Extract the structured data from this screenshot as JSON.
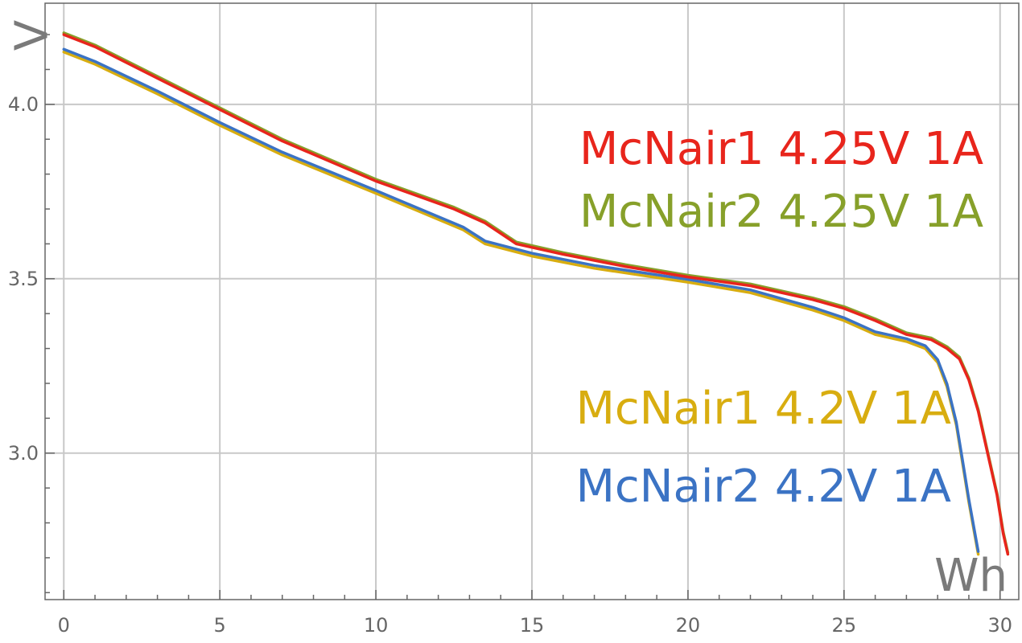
{
  "chart_data": {
    "type": "line",
    "title": "",
    "xlabel": "Wh",
    "ylabel": "V",
    "xlim": [
      -0.6,
      30.6
    ],
    "ylim": [
      2.58,
      4.29
    ],
    "grid": true,
    "x_ticks": [
      0,
      5,
      10,
      15,
      20,
      25,
      30
    ],
    "x_tick_labels": [
      "0",
      "5",
      "10",
      "15",
      "20",
      "25",
      "30"
    ],
    "y_ticks": [
      3.0,
      3.5,
      4.0
    ],
    "y_tick_labels": [
      "3.0",
      "3.5",
      "4.0"
    ],
    "series": [
      {
        "name": "McNair1 4.25V 1A",
        "color": "#e8251c",
        "x": [
          0,
          1,
          3,
          5,
          7,
          10,
          12.5,
          13.5,
          14.5,
          16,
          18,
          20,
          22,
          24,
          25,
          26,
          27,
          27.8,
          28.3,
          28.7,
          29,
          29.3,
          29.6,
          29.9,
          30.1,
          30.25
        ],
        "y": [
          4.2,
          4.165,
          4.075,
          3.985,
          3.895,
          3.78,
          3.7,
          3.66,
          3.6,
          3.57,
          3.535,
          3.505,
          3.48,
          3.44,
          3.415,
          3.38,
          3.34,
          3.325,
          3.3,
          3.27,
          3.21,
          3.12,
          3.0,
          2.88,
          2.77,
          2.71
        ]
      },
      {
        "name": "McNair2 4.25V 1A",
        "color": "#87a02a",
        "x": [
          0,
          1,
          3,
          5,
          7,
          10,
          12.5,
          13.5,
          14.5,
          16,
          18,
          20,
          22,
          24,
          25,
          26,
          27,
          27.8,
          28.3,
          28.7,
          29,
          29.3,
          29.6,
          29.9,
          30.1,
          30.25
        ],
        "y": [
          4.205,
          4.17,
          4.08,
          3.99,
          3.9,
          3.785,
          3.705,
          3.665,
          3.605,
          3.575,
          3.54,
          3.51,
          3.485,
          3.445,
          3.42,
          3.385,
          3.345,
          3.33,
          3.305,
          3.275,
          3.215,
          3.125,
          3.005,
          2.885,
          2.775,
          2.715
        ]
      },
      {
        "name": "McNair1 4.2V 1A",
        "color": "#d8ad10",
        "x": [
          0,
          1,
          3,
          5,
          7,
          10,
          12,
          12.8,
          13.5,
          15,
          17,
          20,
          22,
          24,
          25,
          26,
          27,
          27.6,
          28,
          28.3,
          28.6,
          28.8,
          29,
          29.2,
          29.3
        ],
        "y": [
          4.15,
          4.115,
          4.03,
          3.94,
          3.855,
          3.745,
          3.67,
          3.64,
          3.6,
          3.565,
          3.53,
          3.49,
          3.46,
          3.41,
          3.38,
          3.34,
          3.32,
          3.3,
          3.26,
          3.19,
          3.08,
          2.97,
          2.86,
          2.76,
          2.71
        ]
      },
      {
        "name": "McNair2 4.2V 1A",
        "color": "#3b73c4",
        "x": [
          0,
          1,
          3,
          5,
          7,
          10,
          12,
          12.8,
          13.5,
          15,
          17,
          20,
          22,
          24,
          25,
          26,
          27,
          27.6,
          28,
          28.3,
          28.6,
          28.8,
          29,
          29.2,
          29.3
        ],
        "y": [
          4.158,
          4.123,
          4.038,
          3.948,
          3.863,
          3.753,
          3.678,
          3.648,
          3.608,
          3.573,
          3.538,
          3.498,
          3.468,
          3.418,
          3.388,
          3.348,
          3.328,
          3.308,
          3.268,
          3.198,
          3.088,
          2.978,
          2.868,
          2.768,
          2.718
        ]
      }
    ],
    "legend": {
      "placement": "right",
      "entries": [
        {
          "label": "McNair1 4.25V 1A",
          "color": "#e8251c"
        },
        {
          "label": "McNair2 4.25V 1A",
          "color": "#87a02a"
        },
        {
          "label": "McNair1 4.2V 1A",
          "color": "#d8ad10"
        },
        {
          "label": "McNair2 4.2V 1A",
          "color": "#3b73c4"
        }
      ]
    }
  }
}
